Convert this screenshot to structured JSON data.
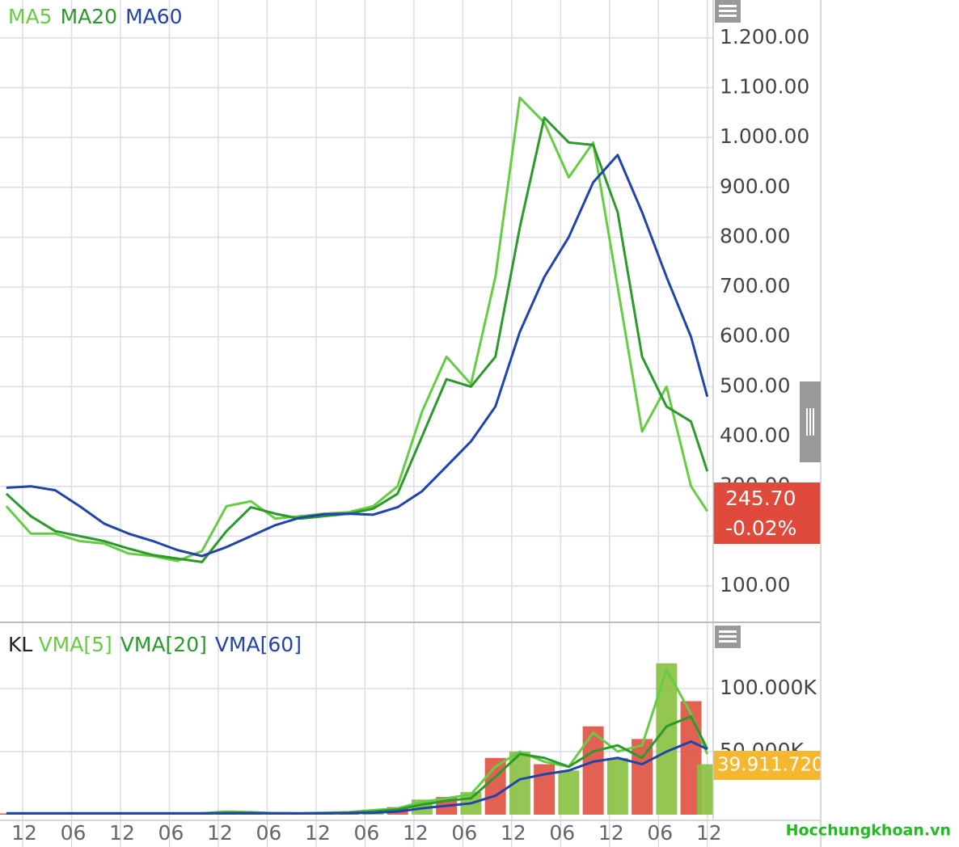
{
  "chart_data": [
    {
      "type": "line",
      "xlim": [
        -2.78,
        84.72
      ],
      "xticks": [
        {
          "value": 0,
          "label": "12"
        },
        {
          "value": 6,
          "label": "06"
        },
        {
          "value": 12,
          "label": "12"
        },
        {
          "value": 18,
          "label": "06"
        },
        {
          "value": 24,
          "label": "12"
        },
        {
          "value": 30,
          "label": "06"
        },
        {
          "value": 36,
          "label": "12"
        },
        {
          "value": 42,
          "label": "06"
        },
        {
          "value": 48,
          "label": "12"
        },
        {
          "value": 54,
          "label": "06"
        },
        {
          "value": 60,
          "label": "12"
        },
        {
          "value": 66,
          "label": "06"
        },
        {
          "value": 72,
          "label": "12"
        },
        {
          "value": 78,
          "label": "06"
        },
        {
          "value": 84,
          "label": "12"
        }
      ],
      "ylim": [
        27,
        1276
      ],
      "yticks": [
        {
          "value": 100,
          "label": "100.00"
        },
        {
          "value": 200,
          "label": "200.00"
        },
        {
          "value": 300,
          "label": "300.00"
        },
        {
          "value": 400,
          "label": "400.00"
        },
        {
          "value": 500,
          "label": "500.00"
        },
        {
          "value": 600,
          "label": "600.00"
        },
        {
          "value": 700,
          "label": "700.00"
        },
        {
          "value": 800,
          "label": "800.00"
        },
        {
          "value": 900,
          "label": "900.00"
        },
        {
          "value": 1000,
          "label": "1.000.00"
        },
        {
          "value": 1100,
          "label": "1.100.00"
        },
        {
          "value": 1200,
          "label": "1.200.00"
        }
      ],
      "grid": true,
      "x": [
        -2,
        1,
        4,
        7,
        10,
        13,
        16,
        19,
        22,
        25,
        28,
        31,
        34,
        37,
        40,
        43,
        46,
        49,
        52,
        55,
        58,
        61,
        64,
        67,
        70,
        73,
        76,
        79,
        82,
        84
      ],
      "series": [
        {
          "name": "MA5",
          "color": "#66cc44",
          "values": [
            260,
            205,
            205,
            190,
            185,
            165,
            160,
            150,
            170,
            260,
            270,
            235,
            240,
            245,
            248,
            260,
            300,
            450,
            560,
            505,
            720,
            1080,
            1030,
            920,
            990,
            700,
            410,
            500,
            300,
            250
          ]
        },
        {
          "name": "MA20",
          "color": "#2a9a2a",
          "values": [
            285,
            240,
            210,
            200,
            190,
            175,
            162,
            155,
            148,
            210,
            258,
            245,
            235,
            240,
            245,
            255,
            285,
            400,
            515,
            500,
            560,
            820,
            1040,
            990,
            985,
            850,
            560,
            460,
            430,
            330
          ]
        },
        {
          "name": "MA60",
          "color": "#2244aa",
          "values": [
            297,
            300,
            292,
            260,
            225,
            205,
            190,
            172,
            160,
            178,
            200,
            222,
            237,
            244,
            245,
            243,
            258,
            290,
            340,
            390,
            460,
            610,
            720,
            800,
            910,
            965,
            850,
            720,
            600,
            480
          ]
        }
      ],
      "annotations": [
        "245.70",
        "-0.02%"
      ]
    },
    {
      "type": "bar",
      "title": "KL",
      "xlim": [
        -2.78,
        84.72
      ],
      "ylim": [
        -4.5,
        152.5
      ],
      "yticks": [
        {
          "value": 50,
          "label": "50.000K"
        },
        {
          "value": 100,
          "label": "100.000K"
        }
      ],
      "x": [
        -2,
        1,
        4,
        7,
        10,
        13,
        16,
        19,
        22,
        25,
        28,
        31,
        34,
        37,
        40,
        43,
        46,
        49,
        52,
        55,
        58,
        61,
        64,
        67,
        70,
        73,
        76,
        79,
        82,
        84
      ],
      "values": [
        1,
        1,
        1,
        1,
        1,
        1,
        1,
        1,
        1,
        3,
        2,
        1,
        1,
        2,
        2,
        4,
        6,
        12,
        14,
        18,
        45,
        50,
        40,
        35,
        70,
        45,
        60,
        120,
        90,
        40
      ],
      "colors": [
        "#e05040",
        "#88c040",
        "#e05040",
        "#88c040",
        "#e05040",
        "#88c040",
        "#e05040",
        "#88c040",
        "#e05040",
        "#88c040",
        "#e05040",
        "#88c040",
        "#e05040",
        "#88c040",
        "#e05040",
        "#88c040",
        "#e05040",
        "#88c040",
        "#e05040",
        "#88c040",
        "#e05040",
        "#88c040",
        "#e05040",
        "#88c040",
        "#e05040",
        "#88c040",
        "#e05040",
        "#88c040",
        "#e05040",
        "#88c040"
      ],
      "series": [
        {
          "name": "VMA[5]",
          "color": "#66cc44",
          "values": [
            1,
            1,
            1,
            1,
            1,
            1,
            1,
            1,
            1,
            2.5,
            2,
            1,
            1,
            1.5,
            2,
            3.5,
            5,
            10,
            13,
            16,
            38,
            50,
            42,
            38,
            65,
            50,
            55,
            115,
            80,
            48
          ]
        },
        {
          "name": "VMA[20]",
          "color": "#2a9a2a",
          "values": [
            1,
            1,
            1,
            1,
            1,
            1,
            1,
            1,
            1,
            1.5,
            1.5,
            1.2,
            1,
            1.2,
            1.5,
            2.5,
            4,
            8,
            11,
            13,
            30,
            48,
            45,
            38,
            50,
            55,
            45,
            70,
            78,
            52
          ]
        },
        {
          "name": "VMA[60]",
          "color": "#2244aa",
          "values": [
            1,
            1,
            1,
            1,
            1,
            1,
            1,
            1,
            1,
            1,
            1,
            1,
            1,
            1,
            1.2,
            1.5,
            2.5,
            5,
            7,
            9,
            15,
            28,
            32,
            35,
            42,
            45,
            40,
            50,
            58,
            52
          ]
        }
      ],
      "annotations": [
        "39.911.720"
      ]
    }
  ],
  "watermark": "Hocchungkhoan.vn"
}
